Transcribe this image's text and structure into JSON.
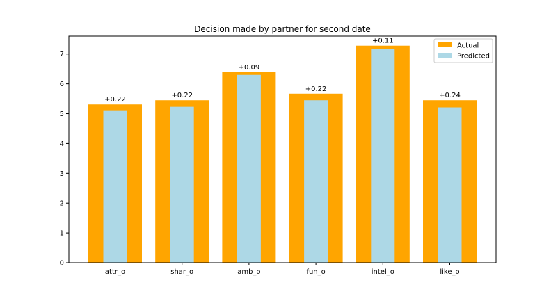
{
  "chart_data": {
    "type": "bar",
    "title": "Decision made by partner for second date",
    "xlabel": "",
    "ylabel": "",
    "categories": [
      "attr_o",
      "shar_o",
      "amb_o",
      "fun_o",
      "intel_o",
      "like_o"
    ],
    "series": [
      {
        "name": "Actual",
        "color": "#ffa500",
        "values": [
          5.31,
          5.45,
          6.39,
          5.67,
          7.28,
          5.45
        ]
      },
      {
        "name": "Predicted",
        "color": "#add8e6",
        "values": [
          5.09,
          5.23,
          6.3,
          5.45,
          7.17,
          5.21
        ]
      }
    ],
    "annotations": [
      "+0.22",
      "+0.22",
      "+0.09",
      "+0.22",
      "+0.11",
      "+0.24"
    ],
    "ylim": [
      0,
      7.6
    ],
    "yticks": [
      "0",
      "1",
      "2",
      "3",
      "4",
      "5",
      "6",
      "7"
    ],
    "grid": false,
    "legend_position": "top-right"
  }
}
